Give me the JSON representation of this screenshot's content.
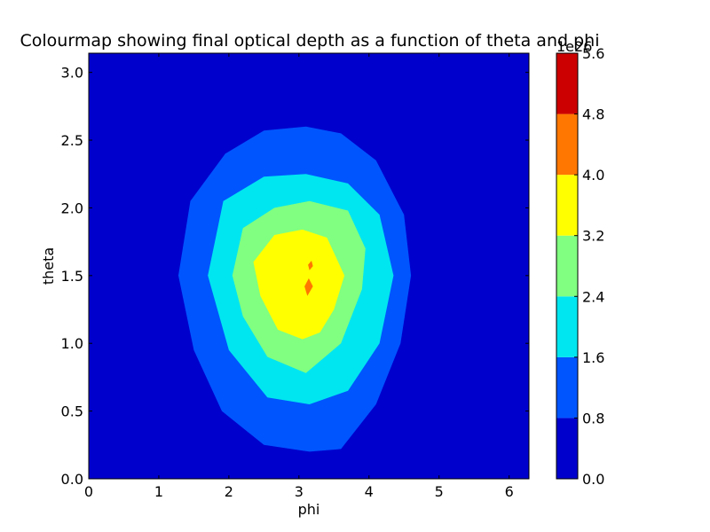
{
  "chart_data": {
    "type": "heatmap",
    "title": "Colourmap showing final optical depth as a function of theta and phi",
    "xlabel": "phi",
    "ylabel": "theta",
    "xlim": [
      0,
      6.283
    ],
    "ylim": [
      0,
      3.1416
    ],
    "x_ticks": [
      "0",
      "1",
      "2",
      "3",
      "4",
      "5",
      "6"
    ],
    "y_ticks": [
      "0.0",
      "0.5",
      "1.0",
      "1.5",
      "2.0",
      "2.5",
      "3.0"
    ],
    "colorbar": {
      "levels": [
        0.0,
        0.8,
        1.6,
        2.4,
        3.2,
        4.0,
        4.8,
        5.6
      ],
      "tick_labels": [
        "0.0",
        "0.8",
        "1.6",
        "2.4",
        "3.2",
        "4.0",
        "4.8",
        "5.6"
      ],
      "offset_label": "1e26",
      "colors": [
        "#0000cd",
        "#0055ff",
        "#00e6f0",
        "#80ff80",
        "#ffff00",
        "#ff7700",
        "#cc0000"
      ]
    },
    "grid": false,
    "contours": [
      {
        "level": 0.8,
        "points": [
          [
            3.1,
            0.1
          ],
          [
            2.4,
            0.13
          ],
          [
            1.5,
            0.2
          ],
          [
            1.1,
            0.5
          ],
          [
            0.9,
            0.95
          ],
          [
            0.78,
            1.5
          ],
          [
            0.95,
            2.0
          ],
          [
            1.3,
            2.45
          ],
          [
            2.0,
            2.7
          ],
          [
            2.6,
            2.83
          ],
          [
            3.1,
            2.85
          ],
          [
            3.6,
            2.8
          ],
          [
            4.2,
            2.7
          ],
          [
            4.8,
            2.4
          ],
          [
            5.0,
            2.0
          ],
          [
            5.05,
            1.5
          ],
          [
            4.9,
            0.95
          ],
          [
            4.6,
            0.5
          ],
          [
            4.0,
            0.18
          ]
        ]
      },
      {
        "level": 1.6,
        "points": [
          [
            3.15,
            0.2
          ],
          [
            2.5,
            0.25
          ],
          [
            1.9,
            0.5
          ],
          [
            1.5,
            0.95
          ],
          [
            1.28,
            1.5
          ],
          [
            1.45,
            2.05
          ],
          [
            1.95,
            2.4
          ],
          [
            2.5,
            2.57
          ],
          [
            3.1,
            2.6
          ],
          [
            3.6,
            2.55
          ],
          [
            4.1,
            2.35
          ],
          [
            4.5,
            1.95
          ],
          [
            4.6,
            1.5
          ],
          [
            4.45,
            1.0
          ],
          [
            4.1,
            0.55
          ],
          [
            3.6,
            0.22
          ]
        ]
      },
      {
        "level": 2.4,
        "points": [
          [
            3.15,
            0.55
          ],
          [
            2.55,
            0.6
          ],
          [
            2.0,
            0.95
          ],
          [
            1.7,
            1.5
          ],
          [
            1.92,
            2.05
          ],
          [
            2.5,
            2.23
          ],
          [
            3.1,
            2.25
          ],
          [
            3.7,
            2.18
          ],
          [
            4.15,
            1.95
          ],
          [
            4.35,
            1.5
          ],
          [
            4.15,
            1.0
          ],
          [
            3.7,
            0.65
          ]
        ]
      },
      {
        "level": 3.2,
        "points": [
          [
            3.1,
            0.78
          ],
          [
            2.55,
            0.9
          ],
          [
            2.2,
            1.2
          ],
          [
            2.05,
            1.5
          ],
          [
            2.2,
            1.85
          ],
          [
            2.65,
            2.0
          ],
          [
            3.15,
            2.05
          ],
          [
            3.7,
            1.98
          ],
          [
            3.95,
            1.7
          ],
          [
            3.9,
            1.4
          ],
          [
            3.6,
            1.0
          ]
        ]
      },
      {
        "level": 4.0,
        "points": [
          [
            3.05,
            1.03
          ],
          [
            2.7,
            1.1
          ],
          [
            2.45,
            1.35
          ],
          [
            2.35,
            1.6
          ],
          [
            2.65,
            1.8
          ],
          [
            3.05,
            1.84
          ],
          [
            3.4,
            1.78
          ],
          [
            3.65,
            1.5
          ],
          [
            3.5,
            1.25
          ],
          [
            3.3,
            1.08
          ]
        ]
      },
      {
        "level": 4.8,
        "points": [
          [
            3.12,
            1.35
          ],
          [
            3.08,
            1.42
          ],
          [
            3.14,
            1.48
          ],
          [
            3.2,
            1.42
          ]
        ]
      },
      {
        "level": 4.8,
        "points": [
          [
            3.15,
            1.54
          ],
          [
            3.13,
            1.58
          ],
          [
            3.18,
            1.61
          ],
          [
            3.2,
            1.57
          ]
        ]
      }
    ]
  }
}
